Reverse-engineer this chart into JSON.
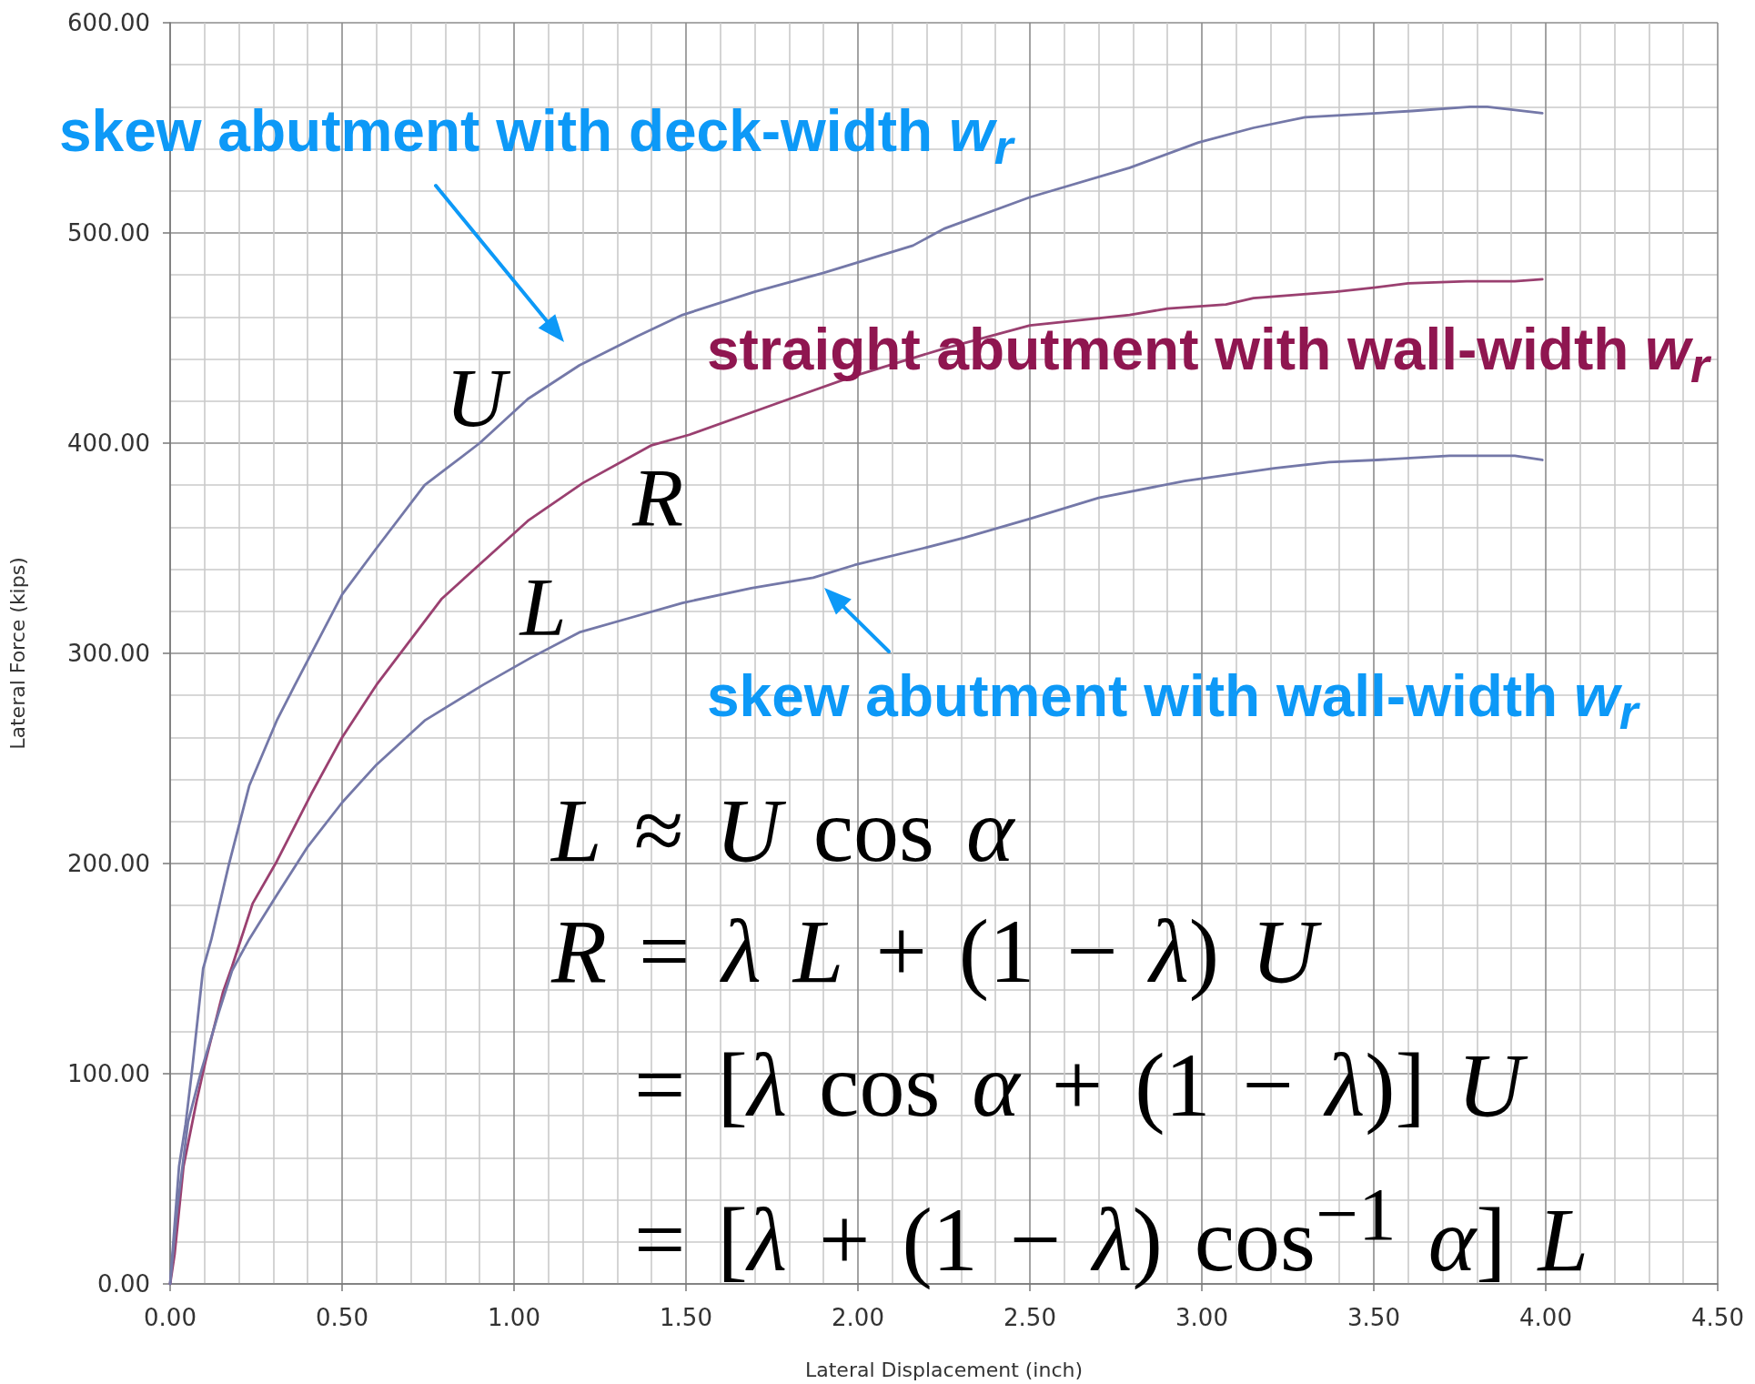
{
  "chart_data": {
    "type": "line",
    "xlabel": "Lateral Displacement (inch)",
    "ylabel": "Lateral Force (kips)",
    "xlim": [
      0,
      4.5
    ],
    "xticks": [
      {
        "value": 0,
        "label": "0.00"
      },
      {
        "value": 0.5,
        "label": "0.50"
      },
      {
        "value": 1,
        "label": "1.00"
      },
      {
        "value": 1.5,
        "label": "1.50"
      },
      {
        "value": 2,
        "label": "2.00"
      },
      {
        "value": 2.5,
        "label": "2.50"
      },
      {
        "value": 3,
        "label": "3.00"
      },
      {
        "value": 3.5,
        "label": "3.50"
      },
      {
        "value": 4,
        "label": "4.00"
      },
      {
        "value": 4.5,
        "label": "4.50"
      }
    ],
    "ylim": [
      0,
      600
    ],
    "yticks": [
      {
        "value": 0,
        "label": "0.00"
      },
      {
        "value": 100,
        "label": "100.00"
      },
      {
        "value": 200,
        "label": "200.00"
      },
      {
        "value": 300,
        "label": "300.00"
      },
      {
        "value": 400,
        "label": "400.00"
      },
      {
        "value": 500,
        "label": "500.00"
      },
      {
        "value": 600,
        "label": "600.00"
      }
    ],
    "grid": true,
    "marker": "none",
    "series": [
      {
        "name": "U",
        "color": "#7478a8",
        "x": [
          0,
          0.026,
          0.045,
          0.064,
          0.096,
          0.12,
          0.17,
          0.23,
          0.31,
          0.36,
          0.5,
          0.6,
          0.74,
          0.9,
          1.04,
          1.19,
          1.36,
          1.49,
          1.7,
          1.9,
          2.16,
          2.25,
          2.5,
          2.79,
          2.99,
          3.15,
          3.3,
          3.51,
          3.61,
          3.78,
          3.83,
          3.99
        ],
        "values": [
          0,
          56,
          76,
          102,
          150,
          164,
          199,
          237,
          268,
          284,
          328,
          350,
          380,
          400,
          421,
          437,
          451,
          461,
          472,
          481,
          494,
          502,
          517,
          531,
          543,
          550,
          555,
          557,
          558,
          560,
          560,
          557
        ]
      },
      {
        "name": "R",
        "color": "#9a4070",
        "x": [
          0,
          0.013,
          0.039,
          0.077,
          0.103,
          0.154,
          0.18,
          0.24,
          0.31,
          0.41,
          0.5,
          0.6,
          0.79,
          1.04,
          1.2,
          1.4,
          1.51,
          1.8,
          1.99,
          2.25,
          2.5,
          2.79,
          2.9,
          3.07,
          3.15,
          3.39,
          3.5,
          3.6,
          3.77,
          3.91,
          3.99
        ],
        "values": [
          0,
          14,
          56,
          87,
          106,
          139,
          151,
          181,
          201,
          233,
          260,
          285,
          326,
          363,
          381,
          399,
          404,
          421,
          432,
          445,
          456,
          461,
          464,
          466,
          469,
          472,
          474,
          476,
          477,
          477,
          478
        ]
      },
      {
        "name": "L",
        "color": "#7478a8",
        "x": [
          0,
          0.02,
          0.052,
          0.09,
          0.141,
          0.18,
          0.23,
          0.31,
          0.4,
          0.5,
          0.6,
          0.74,
          0.91,
          1.05,
          1.19,
          1.34,
          1.49,
          1.69,
          1.87,
          1.99,
          2.19,
          2.31,
          2.5,
          2.7,
          2.95,
          3.21,
          3.37,
          3.51,
          3.72,
          3.91,
          3.99
        ],
        "values": [
          0,
          35,
          77,
          101,
          129,
          149,
          164,
          185,
          208,
          229,
          247,
          268,
          285,
          298,
          310,
          317,
          324,
          331,
          336,
          342,
          350,
          355,
          364,
          374,
          382,
          388,
          391,
          392,
          394,
          394,
          392
        ]
      }
    ],
    "annotations": [
      "skew abutment with deck-width w$_{r}$",
      "straight abutment with wall-width w$_{r}$",
      "skew abutment with wall-width w$_{r}$",
      "L ≈ U cos α",
      "R = λ L + (1 − λ) U",
      "= [λ cos α + (1 − λ)] U",
      "= [λ + (1 − λ) cos$^{−1}$ α] L"
    ]
  }
}
